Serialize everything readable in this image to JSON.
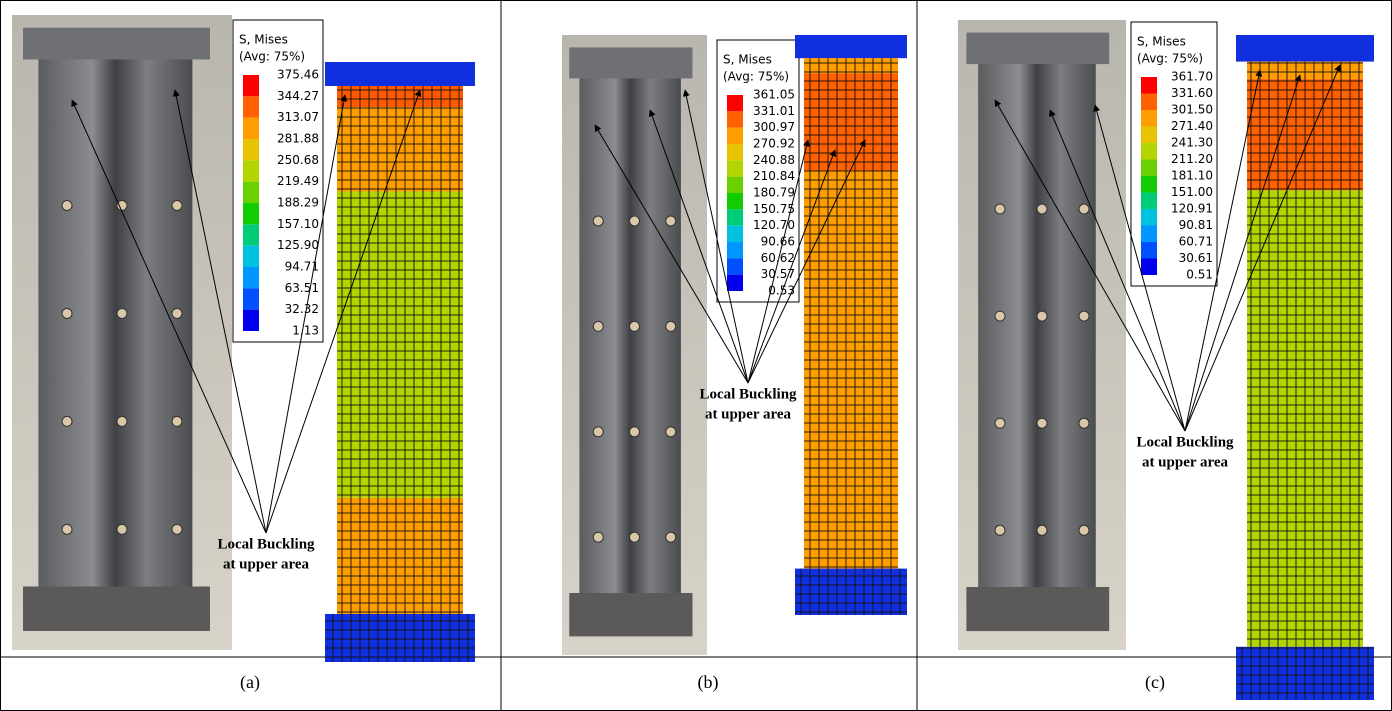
{
  "panels": [
    {
      "caption": "(a)",
      "legend": {
        "title": "S, Mises",
        "subtitle": "(Avg: 75%)",
        "values": [
          "375.46",
          "344.27",
          "313.07",
          "281.88",
          "250.68",
          "219.49",
          "188.29",
          "157.10",
          "125.90",
          "94.71",
          "63.51",
          "32.32",
          "1.13"
        ]
      },
      "annotation": [
        "Local Buckling",
        "at upper area"
      ]
    },
    {
      "caption": "(b)",
      "legend": {
        "title": "S, Mises",
        "subtitle": "(Avg: 75%)",
        "values": [
          "361.05",
          "331.01",
          "300.97",
          "270.92",
          "240.88",
          "210.84",
          "180.79",
          "150.75",
          "120.70",
          "90.66",
          "60.62",
          "30.57",
          "0.53"
        ]
      },
      "annotation": [
        "Local Buckling",
        "at upper area"
      ]
    },
    {
      "caption": "(c)",
      "legend": {
        "title": "S, Mises",
        "subtitle": "(Avg: 75%)",
        "values": [
          "361.70",
          "331.60",
          "301.50",
          "271.40",
          "241.30",
          "211.20",
          "181.10",
          "151.00",
          "120.91",
          "90.81",
          "60.71",
          "30.61",
          "0.51"
        ]
      },
      "annotation": [
        "Local Buckling",
        "at upper area"
      ]
    }
  ]
}
